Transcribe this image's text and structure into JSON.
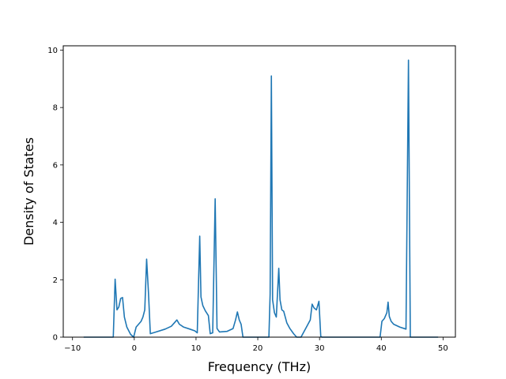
{
  "chart_data": {
    "type": "line",
    "title": "",
    "xlabel": "Frequency (THz)",
    "ylabel": "Density of States",
    "xlim": [
      -11.5,
      52
    ],
    "ylim": [
      0,
      10.15
    ],
    "xticks": [
      -10,
      0,
      10,
      20,
      30,
      40,
      50
    ],
    "yticks": [
      0,
      2,
      4,
      6,
      8,
      10
    ],
    "grid": false,
    "legend": "none",
    "line_color": "#1f77b4",
    "series": [
      {
        "x": [
          -8.2,
          -3.4,
          -3.1,
          -2.8,
          -2.5,
          -2.2,
          -1.9,
          -1.6,
          -1.2,
          -0.6,
          -0.1,
          0.3,
          0.7,
          1.1,
          1.4,
          1.7,
          2.0,
          2.3,
          2.6,
          3.5,
          5.0,
          6.0,
          6.5,
          6.9,
          7.3,
          8.0,
          9.0,
          9.8,
          10.2,
          10.6,
          10.8,
          11.1,
          11.5,
          12.0,
          12.3,
          12.7,
          13.1,
          13.4,
          13.8,
          15.0,
          16.0,
          16.4,
          16.7,
          17.0,
          17.3,
          17.6,
          18.0,
          21.8,
          22.0,
          22.2,
          22.4,
          22.7,
          23.0,
          23.4,
          23.6,
          23.9,
          24.2,
          24.7,
          25.2,
          25.8,
          26.3,
          26.6,
          27.0,
          27.5,
          28.0,
          28.5,
          28.8,
          29.1,
          29.5,
          29.9,
          30.2,
          30.4,
          39.8,
          40.1,
          40.5,
          40.9,
          41.1,
          41.3,
          41.6,
          42.0,
          43.0,
          44.0,
          44.4,
          44.7,
          49.2
        ],
        "y": [
          0,
          0,
          2.02,
          0.95,
          1.05,
          1.35,
          1.38,
          0.7,
          0.35,
          0.1,
          0,
          0.35,
          0.45,
          0.55,
          0.7,
          0.95,
          2.72,
          1.55,
          0.12,
          0.18,
          0.28,
          0.38,
          0.5,
          0.6,
          0.45,
          0.35,
          0.28,
          0.22,
          0.15,
          3.52,
          1.4,
          1.1,
          0.92,
          0.75,
          0.12,
          0.15,
          4.82,
          0.3,
          0.18,
          0.2,
          0.3,
          0.6,
          0.88,
          0.6,
          0.45,
          0,
          0,
          0,
          1.5,
          9.1,
          1.3,
          0.85,
          0.7,
          2.4,
          1.3,
          0.95,
          0.9,
          0.5,
          0.3,
          0.12,
          0,
          0,
          0,
          0.2,
          0.4,
          0.6,
          1.15,
          1.02,
          0.95,
          1.25,
          0.02,
          0,
          0,
          0.55,
          0.65,
          0.85,
          1.22,
          0.72,
          0.55,
          0.45,
          0.35,
          0.28,
          9.65,
          0,
          0
        ]
      }
    ]
  }
}
